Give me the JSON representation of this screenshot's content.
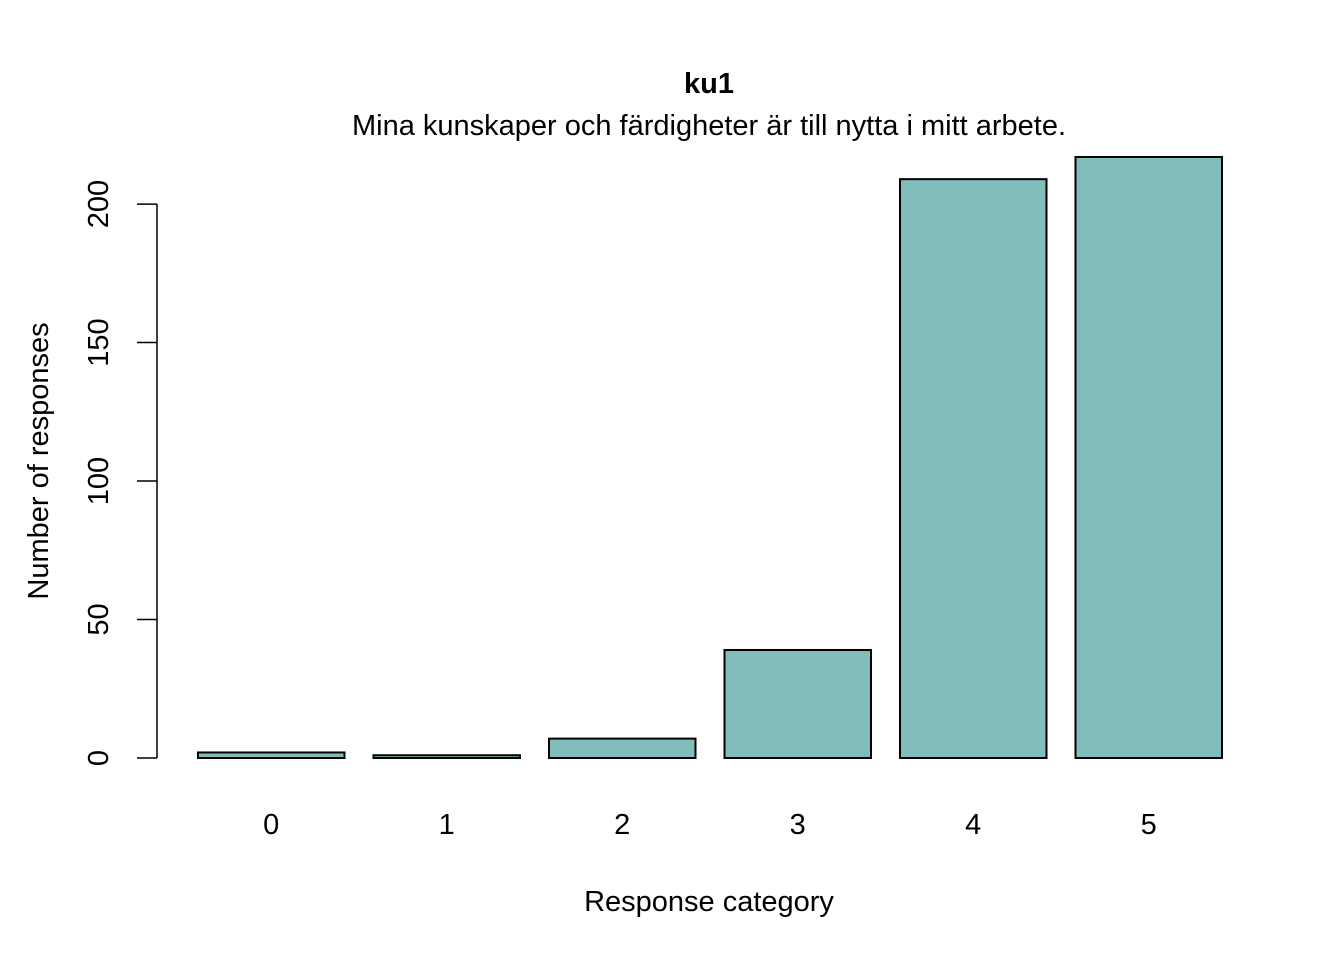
{
  "colors": {
    "bar_fill": "#80BDBB",
    "bar_stroke": "#000000",
    "axis": "#000000"
  },
  "chart_data": {
    "type": "bar",
    "title": "ku1",
    "subtitle": "Mina kunskaper och färdigheter är till nytta i mitt arbete.",
    "xlabel": "Response category",
    "ylabel": "Number of responses",
    "categories": [
      "0",
      "1",
      "2",
      "3",
      "4",
      "5"
    ],
    "values": [
      2,
      1,
      7,
      39,
      209,
      217
    ],
    "ylim": [
      0,
      217
    ],
    "yticks": [
      0,
      50,
      100,
      150,
      200
    ],
    "grid": false,
    "legend": "none"
  }
}
